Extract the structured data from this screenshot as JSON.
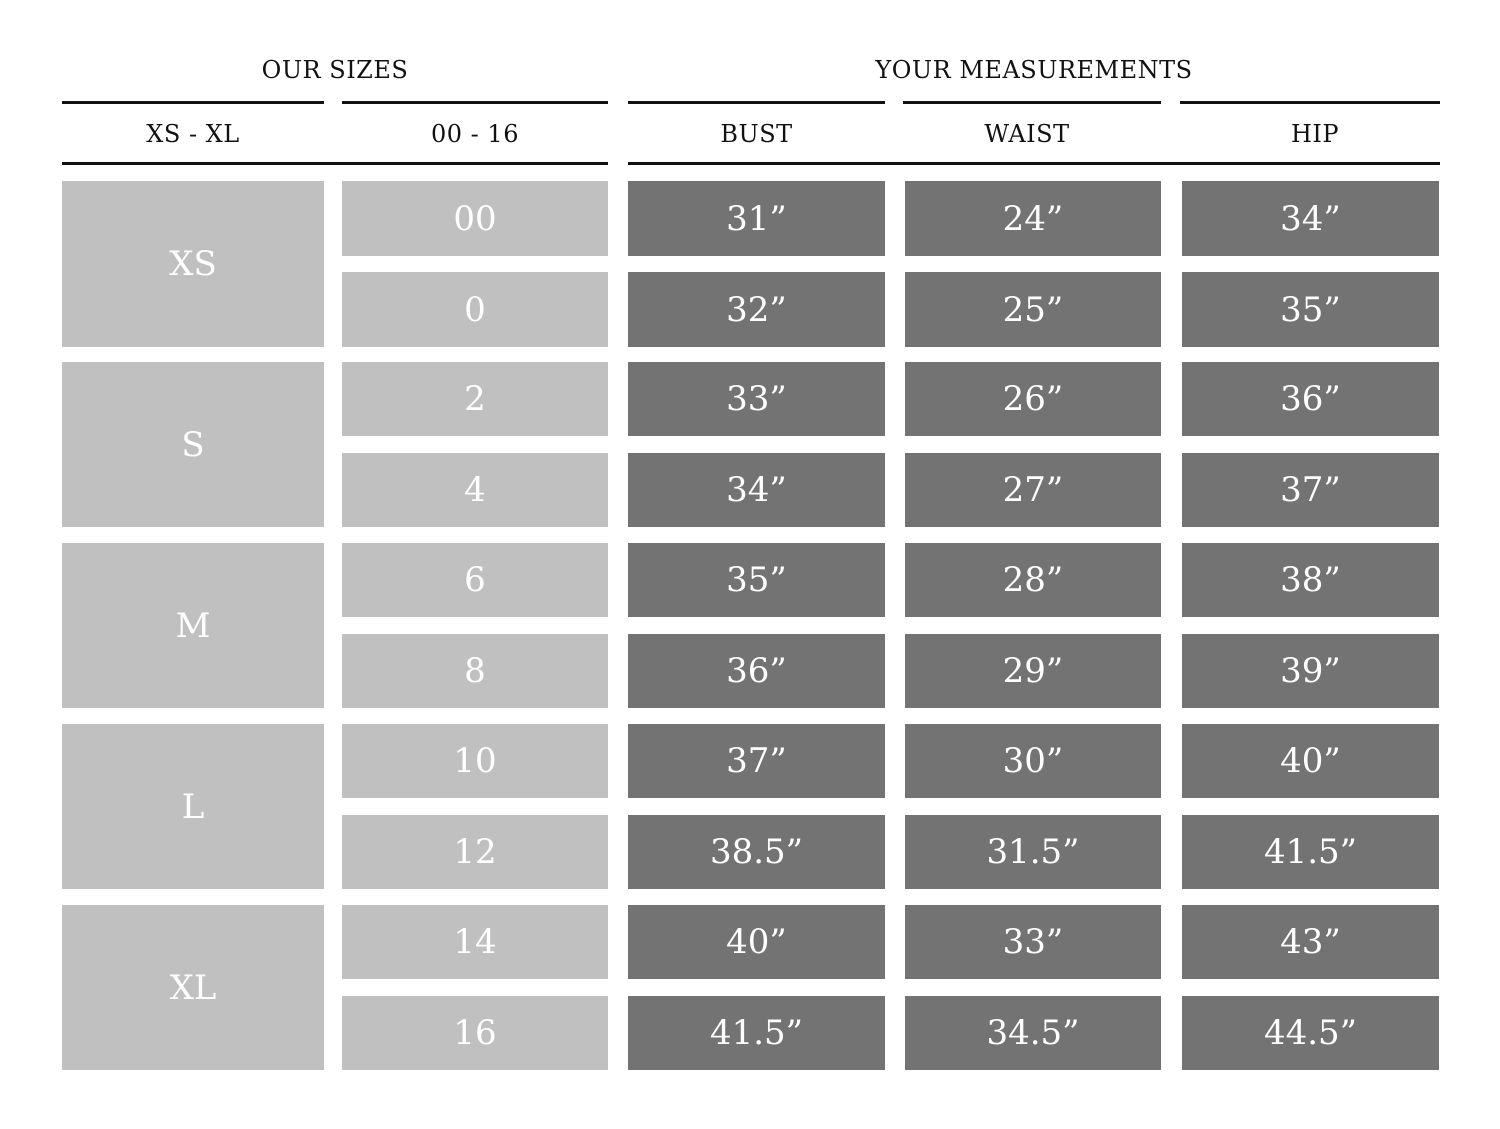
{
  "headers": {
    "our_sizes": "OUR SIZES",
    "your_measurements": "YOUR MEASUREMENTS",
    "letter_col": "XS - XL",
    "number_col": "00 - 16",
    "bust": "BUST",
    "waist": "WAIST",
    "hip": "HIP"
  },
  "colors": {
    "light_cell": "#c0c0c0",
    "dark_cell": "#737373",
    "text_on_cell": "#ffffff",
    "rule": "#111111"
  },
  "groups": [
    {
      "letter": "XS",
      "rows": [
        {
          "num": "00",
          "bust": "31”",
          "waist": "24”",
          "hip": "34”"
        },
        {
          "num": "0",
          "bust": "32”",
          "waist": "25”",
          "hip": "35”"
        }
      ]
    },
    {
      "letter": "S",
      "rows": [
        {
          "num": "2",
          "bust": "33”",
          "waist": "26”",
          "hip": "36”"
        },
        {
          "num": "4",
          "bust": "34”",
          "waist": "27”",
          "hip": "37”"
        }
      ]
    },
    {
      "letter": "M",
      "rows": [
        {
          "num": "6",
          "bust": "35”",
          "waist": "28”",
          "hip": "38”"
        },
        {
          "num": "8",
          "bust": "36”",
          "waist": "29”",
          "hip": "39”"
        }
      ]
    },
    {
      "letter": "L",
      "rows": [
        {
          "num": "10",
          "bust": "37”",
          "waist": "30”",
          "hip": "40”"
        },
        {
          "num": "12",
          "bust": "38.5”",
          "waist": "31.5”",
          "hip": "41.5”"
        }
      ]
    },
    {
      "letter": "XL",
      "rows": [
        {
          "num": "14",
          "bust": "40”",
          "waist": "33”",
          "hip": "43”"
        },
        {
          "num": "16",
          "bust": "41.5”",
          "waist": "34.5”",
          "hip": "44.5”"
        }
      ]
    }
  ]
}
